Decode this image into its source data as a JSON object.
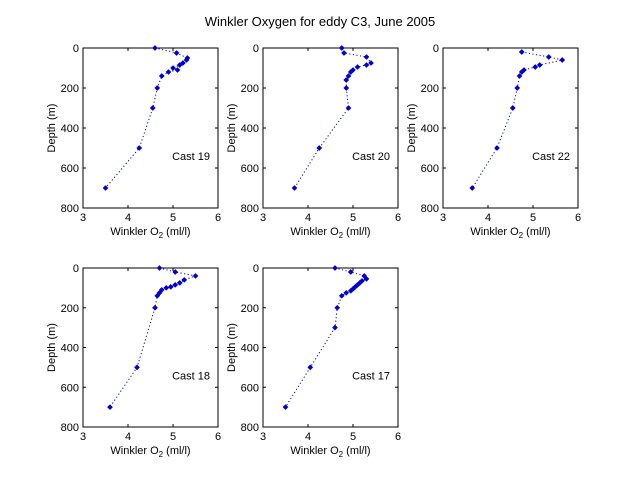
{
  "figure": {
    "title": "Winkler Oxygen for eddy C3, June 2005"
  },
  "chart_data": [
    {
      "type": "scatter",
      "cast_label": "Cast 19",
      "xlabel": "Winkler O",
      "xlabel_sub": "2",
      "xlabel_unit": " (ml/l)",
      "ylabel": "Depth (m)",
      "xlim": [
        3,
        6
      ],
      "ylim": [
        0,
        800
      ],
      "y_reversed": true,
      "xticks": [
        3,
        4,
        5,
        6
      ],
      "yticks": [
        0,
        200,
        400,
        600,
        800
      ],
      "x": [
        4.6,
        5.08,
        5.32,
        5.3,
        5.22,
        5.15,
        5.0,
        5.1,
        4.9,
        4.75,
        4.65,
        4.55,
        4.25,
        3.5
      ],
      "y": [
        0,
        25,
        50,
        60,
        75,
        85,
        100,
        110,
        120,
        140,
        200,
        300,
        500,
        700
      ]
    },
    {
      "type": "scatter",
      "cast_label": "Cast 20",
      "xlabel": "Winkler O",
      "xlabel_sub": "2",
      "xlabel_unit": " (ml/l)",
      "ylabel": "Depth (m)",
      "xlim": [
        3,
        6
      ],
      "ylim": [
        0,
        800
      ],
      "y_reversed": true,
      "xticks": [
        3,
        4,
        5,
        6
      ],
      "yticks": [
        0,
        200,
        400,
        600,
        800
      ],
      "x": [
        4.75,
        4.8,
        5.3,
        5.4,
        5.3,
        5.1,
        5.0,
        4.95,
        4.9,
        4.85,
        4.85,
        4.9,
        4.25,
        3.7
      ],
      "y": [
        0,
        25,
        45,
        75,
        85,
        95,
        110,
        120,
        140,
        160,
        200,
        300,
        500,
        700
      ]
    },
    {
      "type": "scatter",
      "cast_label": "Cast 22",
      "xlabel": "Winkler O",
      "xlabel_sub": "2",
      "xlabel_unit": " (ml/l)",
      "ylabel": "Depth (m)",
      "xlim": [
        3,
        6
      ],
      "ylim": [
        0,
        800
      ],
      "y_reversed": true,
      "xticks": [
        3,
        4,
        5,
        6
      ],
      "yticks": [
        0,
        200,
        400,
        600,
        800
      ],
      "x": [
        4.75,
        5.35,
        5.65,
        5.15,
        5.05,
        4.8,
        4.75,
        4.7,
        4.65,
        4.55,
        4.2,
        3.65
      ],
      "y": [
        20,
        45,
        60,
        85,
        95,
        110,
        120,
        140,
        200,
        300,
        500,
        700
      ]
    },
    {
      "type": "scatter",
      "cast_label": "Cast 18",
      "xlabel": "Winkler O",
      "xlabel_sub": "2",
      "xlabel_unit": " (ml/l)",
      "ylabel": "Depth (m)",
      "xlim": [
        3,
        6
      ],
      "ylim": [
        0,
        800
      ],
      "y_reversed": true,
      "xticks": [
        3,
        4,
        5,
        6
      ],
      "yticks": [
        0,
        200,
        400,
        600,
        800
      ],
      "x": [
        4.7,
        5.05,
        5.5,
        5.25,
        5.15,
        5.05,
        4.95,
        4.85,
        4.75,
        4.7,
        4.65,
        4.6,
        4.2,
        3.6
      ],
      "y": [
        0,
        20,
        40,
        60,
        75,
        85,
        95,
        100,
        110,
        125,
        140,
        200,
        500,
        700
      ]
    },
    {
      "type": "scatter",
      "cast_label": "Cast 17",
      "xlabel": "Winkler O",
      "xlabel_sub": "2",
      "xlabel_unit": " (ml/l)",
      "ylabel": "Depth (m)",
      "xlim": [
        3,
        6
      ],
      "ylim": [
        0,
        800
      ],
      "y_reversed": true,
      "xticks": [
        3,
        4,
        5,
        6
      ],
      "yticks": [
        0,
        200,
        400,
        600,
        800
      ],
      "x": [
        4.6,
        4.95,
        5.25,
        5.3,
        5.2,
        5.15,
        5.1,
        5.05,
        5.0,
        4.95,
        4.85,
        4.75,
        4.65,
        4.6,
        4.05,
        3.5
      ],
      "y": [
        0,
        20,
        40,
        55,
        65,
        75,
        85,
        95,
        105,
        115,
        125,
        140,
        200,
        300,
        500,
        700
      ]
    }
  ],
  "style": {
    "marker_color": "#0000cc",
    "line_color": "#0000cc",
    "axis_color": "#000000"
  }
}
